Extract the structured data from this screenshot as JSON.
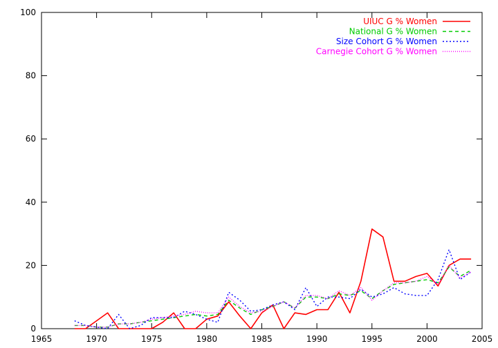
{
  "chart_data": {
    "type": "line",
    "title": "",
    "xlabel": "",
    "ylabel": "",
    "xlim": [
      1965,
      2005
    ],
    "ylim": [
      0,
      100
    ],
    "xticks": [
      1965,
      1970,
      1975,
      1980,
      1985,
      1990,
      1995,
      2000,
      2005
    ],
    "yticks": [
      0,
      20,
      40,
      60,
      80,
      100
    ],
    "grid": false,
    "legend_position": "top-right",
    "x": [
      1968,
      1969,
      1970,
      1971,
      1972,
      1973,
      1974,
      1975,
      1976,
      1977,
      1978,
      1979,
      1980,
      1981,
      1982,
      1983,
      1984,
      1985,
      1986,
      1987,
      1988,
      1989,
      1990,
      1991,
      1992,
      1993,
      1994,
      1995,
      1996,
      1997,
      1998,
      1999,
      2000,
      2001,
      2002,
      2003,
      2004
    ],
    "series": [
      {
        "name": "UIUC G % Women",
        "color": "#ff0000",
        "dash": "",
        "values": [
          0,
          0,
          2.5,
          5,
          0,
          0,
          0,
          0,
          2,
          5,
          0,
          0,
          3,
          4,
          8.5,
          4,
          0,
          5,
          7.5,
          0,
          5,
          4.5,
          6,
          6,
          11.5,
          5,
          15,
          31.5,
          29,
          15,
          15,
          16.5,
          17.5,
          13.5,
          20,
          22,
          22
        ]
      },
      {
        "name": "National G % Women",
        "color": "#00cc00",
        "dash": "5,4",
        "values": [
          1,
          1,
          0.5,
          0.5,
          1.5,
          1.5,
          2,
          2.5,
          3,
          3.5,
          4,
          4.5,
          4,
          4.5,
          9,
          6.5,
          4.5,
          6,
          7,
          8.5,
          6.5,
          10,
          10,
          9.5,
          11,
          10.5,
          12,
          9.5,
          12,
          14,
          14.5,
          15,
          15.5,
          14.5,
          19.5,
          16.5,
          18.5
        ]
      },
      {
        "name": "Size Cohort G % Women",
        "color": "#0000ff",
        "dash": "2,3",
        "values": [
          2.5,
          1,
          0.5,
          0,
          4.5,
          0,
          1,
          3.5,
          3.5,
          3.5,
          5.5,
          4.5,
          3,
          2,
          11.5,
          9,
          5.5,
          6,
          7.5,
          8.5,
          6,
          13,
          7,
          10,
          10,
          9.5,
          12.5,
          10,
          11,
          13,
          11,
          10.5,
          10.5,
          15.5,
          25,
          15.5,
          18
        ]
      },
      {
        "name": "Carnegie Cohort G % Women",
        "color": "#ff00ff",
        "dash": "1,2",
        "values": [
          1,
          1,
          0.5,
          0.5,
          1.5,
          1.5,
          2,
          3,
          3.5,
          4,
          4.5,
          5.5,
          5,
          5,
          10,
          7,
          5,
          5.5,
          7,
          8.5,
          6.5,
          10.5,
          10.5,
          9.5,
          12,
          10.5,
          13,
          9,
          12,
          14.5,
          14.5,
          15,
          16.5,
          14,
          20,
          16,
          18
        ]
      }
    ]
  }
}
